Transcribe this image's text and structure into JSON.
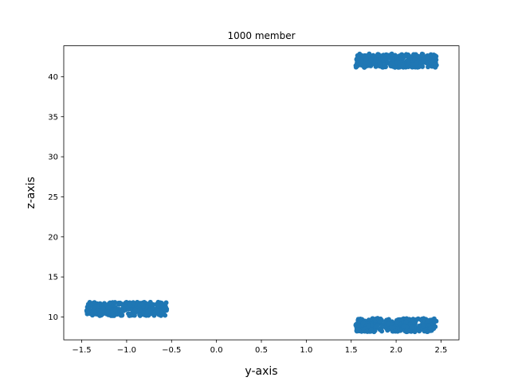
{
  "chart_data": {
    "type": "scatter",
    "title": "1000 member",
    "xlabel": "y-axis",
    "ylabel": "z-axis",
    "xlim": [
      -1.7,
      2.7
    ],
    "ylim": [
      7.15,
      43.85
    ],
    "xticks": [
      -1.5,
      -1.0,
      -0.5,
      0.0,
      0.5,
      1.0,
      1.5,
      2.0,
      2.5
    ],
    "xtick_labels": [
      "−1.5",
      "−1.0",
      "−0.5",
      "0.0",
      "0.5",
      "1.0",
      "1.5",
      "2.0",
      "2.5"
    ],
    "yticks": [
      10,
      15,
      20,
      25,
      30,
      35,
      40
    ],
    "ytick_labels": [
      "10",
      "15",
      "20",
      "25",
      "30",
      "35",
      "40"
    ],
    "grid": false,
    "color": "#1f77b4",
    "clusters": [
      {
        "x_range": [
          -1.45,
          -0.55
        ],
        "y_center": 11.0,
        "y_halfspread": 0.85,
        "count": 334
      },
      {
        "x_range": [
          1.55,
          2.45
        ],
        "y_center": 9.0,
        "y_halfspread": 0.85,
        "count": 333
      },
      {
        "x_range": [
          1.55,
          2.45
        ],
        "y_center": 42.0,
        "y_halfspread": 0.85,
        "count": 333
      }
    ]
  }
}
